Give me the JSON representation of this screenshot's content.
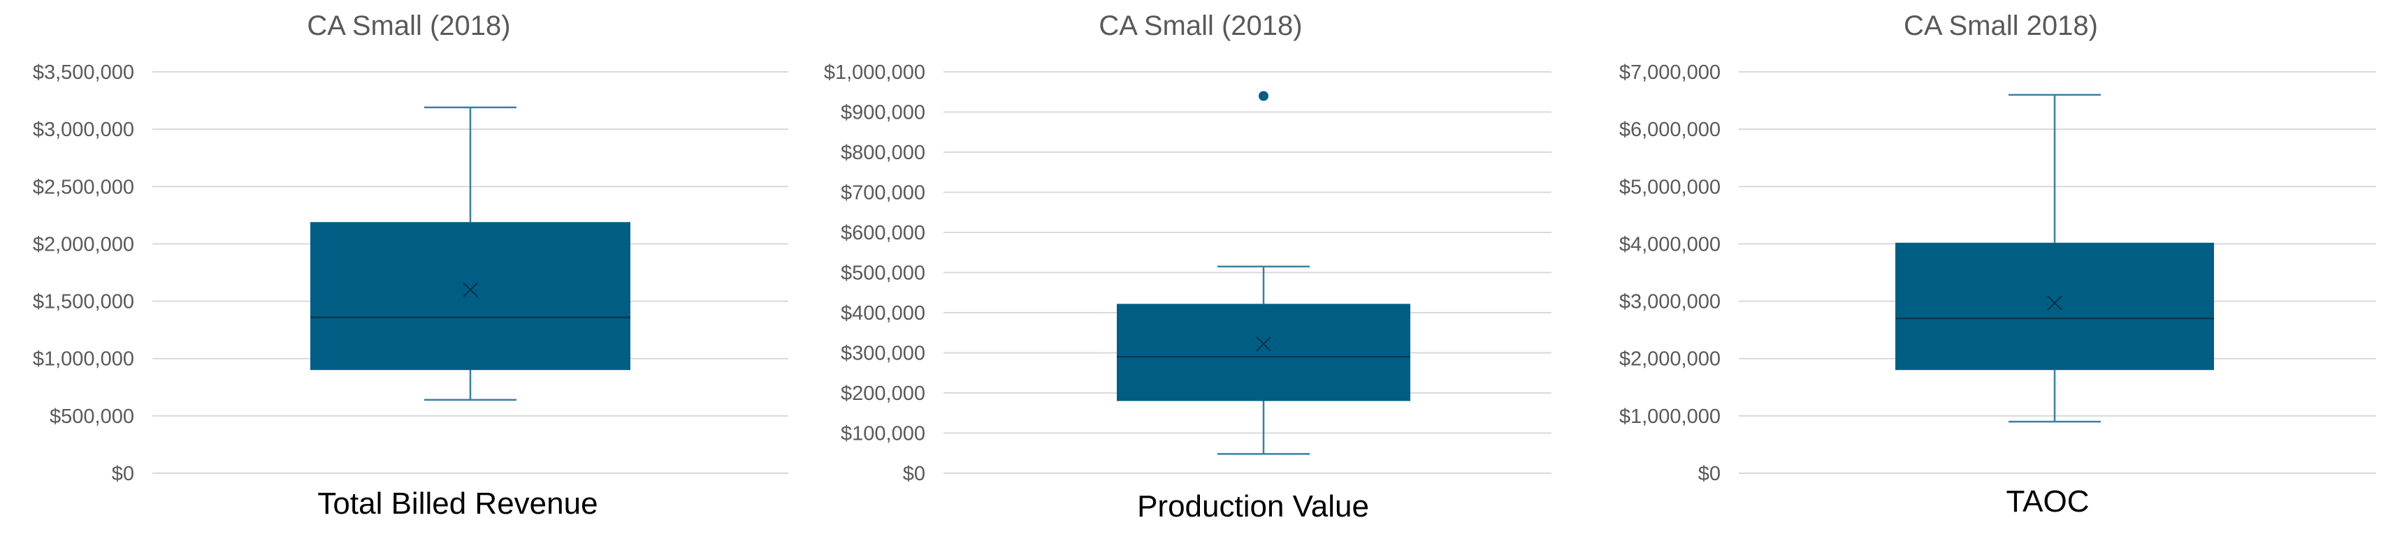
{
  "chart_data": [
    {
      "type": "box",
      "title": "CA Small (2018)",
      "xlabel": "Total Billed Revenue",
      "ylim": [
        0,
        3500000
      ],
      "tick_step": 500000,
      "ticks": [
        "$0",
        "$500,000",
        "$1,000,000",
        "$1,500,000",
        "$2,000,000",
        "$2,500,000",
        "$3,000,000",
        "$3,500,000"
      ],
      "box": {
        "min": 640000,
        "q1": 900000,
        "median": 1360000,
        "q3": 2190000,
        "max": 3190000,
        "mean": 1600000
      },
      "outliers": [],
      "color": "#005E85"
    },
    {
      "type": "box",
      "title": "CA Small (2018)",
      "xlabel": "Production Value",
      "ylim": [
        0,
        1000000
      ],
      "tick_step": 100000,
      "ticks": [
        "$0",
        "$100,000",
        "$200,000",
        "$300,000",
        "$400,000",
        "$500,000",
        "$600,000",
        "$700,000",
        "$800,000",
        "$900,000",
        "$1,000,000"
      ],
      "box": {
        "min": 48000,
        "q1": 180000,
        "median": 290000,
        "q3": 422000,
        "max": 515000,
        "mean": 322000
      },
      "outliers": [
        940000
      ],
      "color": "#005E85"
    },
    {
      "type": "box",
      "title": "CA Small 2018)",
      "xlabel": "TAOC",
      "ylim": [
        0,
        7000000
      ],
      "tick_step": 1000000,
      "ticks": [
        "$0",
        "$1,000,000",
        "$2,000,000",
        "$3,000,000",
        "$4,000,000",
        "$5,000,000",
        "$6,000,000",
        "$7,000,000"
      ],
      "box": {
        "min": 900000,
        "q1": 1800000,
        "median": 2700000,
        "q3": 4020000,
        "max": 6600000,
        "mean": 2970000
      },
      "outliers": [],
      "color": "#005E85"
    }
  ],
  "colors": {
    "box_fill": "#005E85",
    "whisker": "#3B7FA0",
    "gridline": "#D9D9D9",
    "axis_text": "#595959",
    "title_text": "#595959",
    "xlabel_text": "#000000"
  }
}
